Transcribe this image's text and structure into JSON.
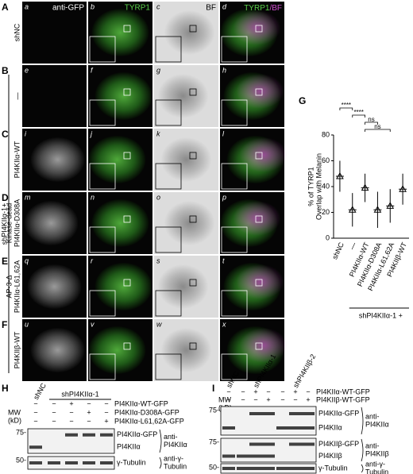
{
  "micrograph_grid": {
    "column_headers": [
      "anti-GFP",
      "TYRP1",
      "BF"
    ],
    "merge_header": [
      "TYRP1",
      "/BF"
    ],
    "group_label": "shPI4KIIα-1+",
    "rows": [
      {
        "letter": "A",
        "label": [
          "shNC"
        ],
        "panels": [
          "a",
          "b",
          "c",
          "d"
        ]
      },
      {
        "letter": "B",
        "label": [
          "—"
        ],
        "panels": [
          "e",
          "f",
          "g",
          "h"
        ]
      },
      {
        "letter": "C",
        "label": [
          "PI4KIIα-WT"
        ],
        "panels": [
          "i",
          "j",
          "k",
          "l"
        ]
      },
      {
        "letter": "D",
        "label": [
          "Kinase-dead",
          "PI4KIIα-D308A"
        ],
        "panels": [
          "m",
          "n",
          "o",
          "p"
        ]
      },
      {
        "letter": "E",
        "label": [
          "AP-3-Δ",
          "PI4KIIα-L61,62A"
        ],
        "panels": [
          "q",
          "r",
          "s",
          "t"
        ]
      },
      {
        "letter": "F",
        "label": [
          "PI4KIIβ-WT"
        ],
        "panels": [
          "u",
          "v",
          "w",
          "x"
        ]
      }
    ]
  },
  "panel_g": {
    "letter": "G",
    "type": "scatter",
    "y_label": [
      "% of TYRP1",
      "Overlap with Melanin"
    ],
    "categories": [
      "shNC",
      "—",
      "PI4KIIα-WT",
      "PI4KIIα-D308A",
      "PI4KIIα-L61,62A",
      "PI4KIIβ-WT"
    ],
    "means": [
      48,
      22,
      39,
      22,
      25,
      38
    ],
    "sd": [
      12,
      13,
      11,
      14,
      13,
      12
    ],
    "ylim": [
      0,
      80
    ],
    "yticks": [
      0,
      20,
      40,
      60,
      80
    ],
    "color": "#000000",
    "comparisons": [
      {
        "groups": [
          "shNC",
          "—"
        ],
        "label": "****"
      },
      {
        "groups": [
          "—",
          "PI4KIIα-WT"
        ],
        "label": "****"
      },
      {
        "groups": [
          "PI4KIIα-WT",
          "PI4KIIα-D308A"
        ],
        "label": "ns"
      },
      {
        "groups": [
          "PI4KIIα-WT",
          "PI4KIIα-L61,62A"
        ],
        "label": "ns"
      }
    ],
    "group_label": "shPI4KIIα-1 +"
  },
  "blot_h": {
    "letter": "H",
    "lane_groups": [
      "shNC",
      "shPI4KIIα-1"
    ],
    "mw_label": [
      "MW",
      "(kD)"
    ],
    "conditions": [
      {
        "name": "PI4KIIα-WT-GFP",
        "signs": [
          "−",
          "−",
          "+",
          "−",
          "−"
        ]
      },
      {
        "name": "PI4KIIα-D308A-GFP",
        "signs": [
          "−",
          "−",
          "−",
          "+",
          "−"
        ]
      },
      {
        "name": "PI4KIIα-L61,62A-GFP",
        "signs": [
          "−",
          "−",
          "−",
          "−",
          "+"
        ]
      }
    ],
    "panels": [
      {
        "mw": "75-",
        "bands": [
          "PI4KIIα-GFP",
          "PI4KIIα"
        ],
        "antibody": [
          "anti-",
          "PI4KIIα"
        ]
      },
      {
        "mw": "50-",
        "bands": [
          "γ-Tubulin"
        ],
        "antibody": [
          "anti-γ-",
          "Tubulin"
        ]
      }
    ]
  },
  "blot_i": {
    "letter": "I",
    "lane_groups": [
      "shNC",
      "shPI4KIIα-1",
      "shPI4KIIβ-2"
    ],
    "mw_label": [
      "MW",
      "(kD)"
    ],
    "conditions": [
      {
        "name": "PI4KIIα-WT-GFP",
        "signs": [
          "−",
          "−",
          "+",
          "−",
          "−",
          "+",
          "−"
        ]
      },
      {
        "name": "PI4KIIβ-WT-GFP",
        "signs": [
          "−",
          "−",
          "−",
          "+",
          "−",
          "−",
          "+"
        ]
      }
    ],
    "panels": [
      {
        "mw": "75-",
        "bands": [
          "PI4KIIα-GFP",
          "PI4KIIα"
        ],
        "antibody": [
          "anti-",
          "PI4KIIα"
        ]
      },
      {
        "mw": "75-",
        "bands": [
          "PI4KIIβ-GFP",
          "PI4KIIβ"
        ],
        "antibody": [
          "anti-",
          "PI4KIIβ"
        ]
      },
      {
        "mw": "50-",
        "bands": [
          "γ-Tubulin"
        ],
        "antibody": [
          "anti-γ-",
          "Tubulin"
        ]
      }
    ]
  }
}
